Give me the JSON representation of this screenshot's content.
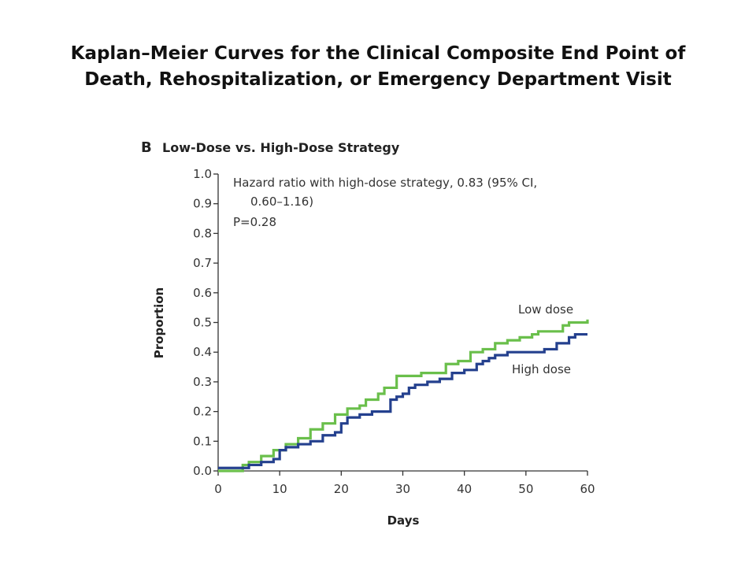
{
  "slide": {
    "title_line1": "Kaplan–Meier Curves for the Clinical Composite End Point of",
    "title_line2": "Death, Rehospitalization, or Emergency Department Visit"
  },
  "chart_data": {
    "type": "line",
    "panel_letter": "B",
    "title": "Low-Dose vs. High-Dose Strategy",
    "xlabel": "Days",
    "ylabel": "Proportion",
    "xlim": [
      0,
      60
    ],
    "ylim": [
      0,
      1.0
    ],
    "x_ticks": [
      0,
      10,
      20,
      30,
      40,
      50,
      60
    ],
    "y_ticks": [
      "0.0",
      "0.1",
      "0.2",
      "0.3",
      "0.4",
      "0.5",
      "0.6",
      "0.7",
      "0.8",
      "0.9",
      "1.0"
    ],
    "grid": false,
    "annotation": [
      "Hazard ratio with high-dose strategy, 0.83 (95% CI,",
      "0.60–1.16)",
      "P=0.28"
    ],
    "step": true,
    "series": [
      {
        "name": "Low dose",
        "color": "#6abf4b",
        "points": [
          [
            0,
            0.0
          ],
          [
            3.5,
            0.0
          ],
          [
            4,
            0.02
          ],
          [
            5,
            0.03
          ],
          [
            7,
            0.05
          ],
          [
            9,
            0.07
          ],
          [
            11,
            0.09
          ],
          [
            13,
            0.11
          ],
          [
            15,
            0.14
          ],
          [
            17,
            0.16
          ],
          [
            19,
            0.19
          ],
          [
            21,
            0.21
          ],
          [
            23,
            0.22
          ],
          [
            24,
            0.24
          ],
          [
            26,
            0.26
          ],
          [
            27,
            0.28
          ],
          [
            29,
            0.32
          ],
          [
            31,
            0.32
          ],
          [
            33,
            0.33
          ],
          [
            35,
            0.33
          ],
          [
            37,
            0.36
          ],
          [
            39,
            0.37
          ],
          [
            41,
            0.4
          ],
          [
            43,
            0.41
          ],
          [
            45,
            0.43
          ],
          [
            47,
            0.44
          ],
          [
            49,
            0.45
          ],
          [
            51,
            0.46
          ],
          [
            52,
            0.47
          ],
          [
            54,
            0.47
          ],
          [
            56,
            0.49
          ],
          [
            57,
            0.5
          ],
          [
            59,
            0.5
          ],
          [
            60,
            0.51
          ]
        ]
      },
      {
        "name": "High dose",
        "color": "#24408e",
        "points": [
          [
            0,
            0.01
          ],
          [
            4,
            0.01
          ],
          [
            5,
            0.02
          ],
          [
            7,
            0.03
          ],
          [
            9,
            0.04
          ],
          [
            10,
            0.07
          ],
          [
            11,
            0.08
          ],
          [
            13,
            0.09
          ],
          [
            15,
            0.1
          ],
          [
            17,
            0.12
          ],
          [
            19,
            0.13
          ],
          [
            20,
            0.16
          ],
          [
            21,
            0.18
          ],
          [
            23,
            0.19
          ],
          [
            25,
            0.2
          ],
          [
            28,
            0.24
          ],
          [
            29,
            0.25
          ],
          [
            30,
            0.26
          ],
          [
            31,
            0.28
          ],
          [
            32,
            0.29
          ],
          [
            34,
            0.3
          ],
          [
            36,
            0.31
          ],
          [
            38,
            0.33
          ],
          [
            40,
            0.34
          ],
          [
            42,
            0.36
          ],
          [
            43,
            0.37
          ],
          [
            44,
            0.38
          ],
          [
            45,
            0.39
          ],
          [
            47,
            0.4
          ],
          [
            49,
            0.4
          ],
          [
            51,
            0.4
          ],
          [
            53,
            0.41
          ],
          [
            55,
            0.43
          ],
          [
            57,
            0.45
          ],
          [
            58,
            0.46
          ],
          [
            60,
            0.46
          ]
        ]
      }
    ]
  }
}
